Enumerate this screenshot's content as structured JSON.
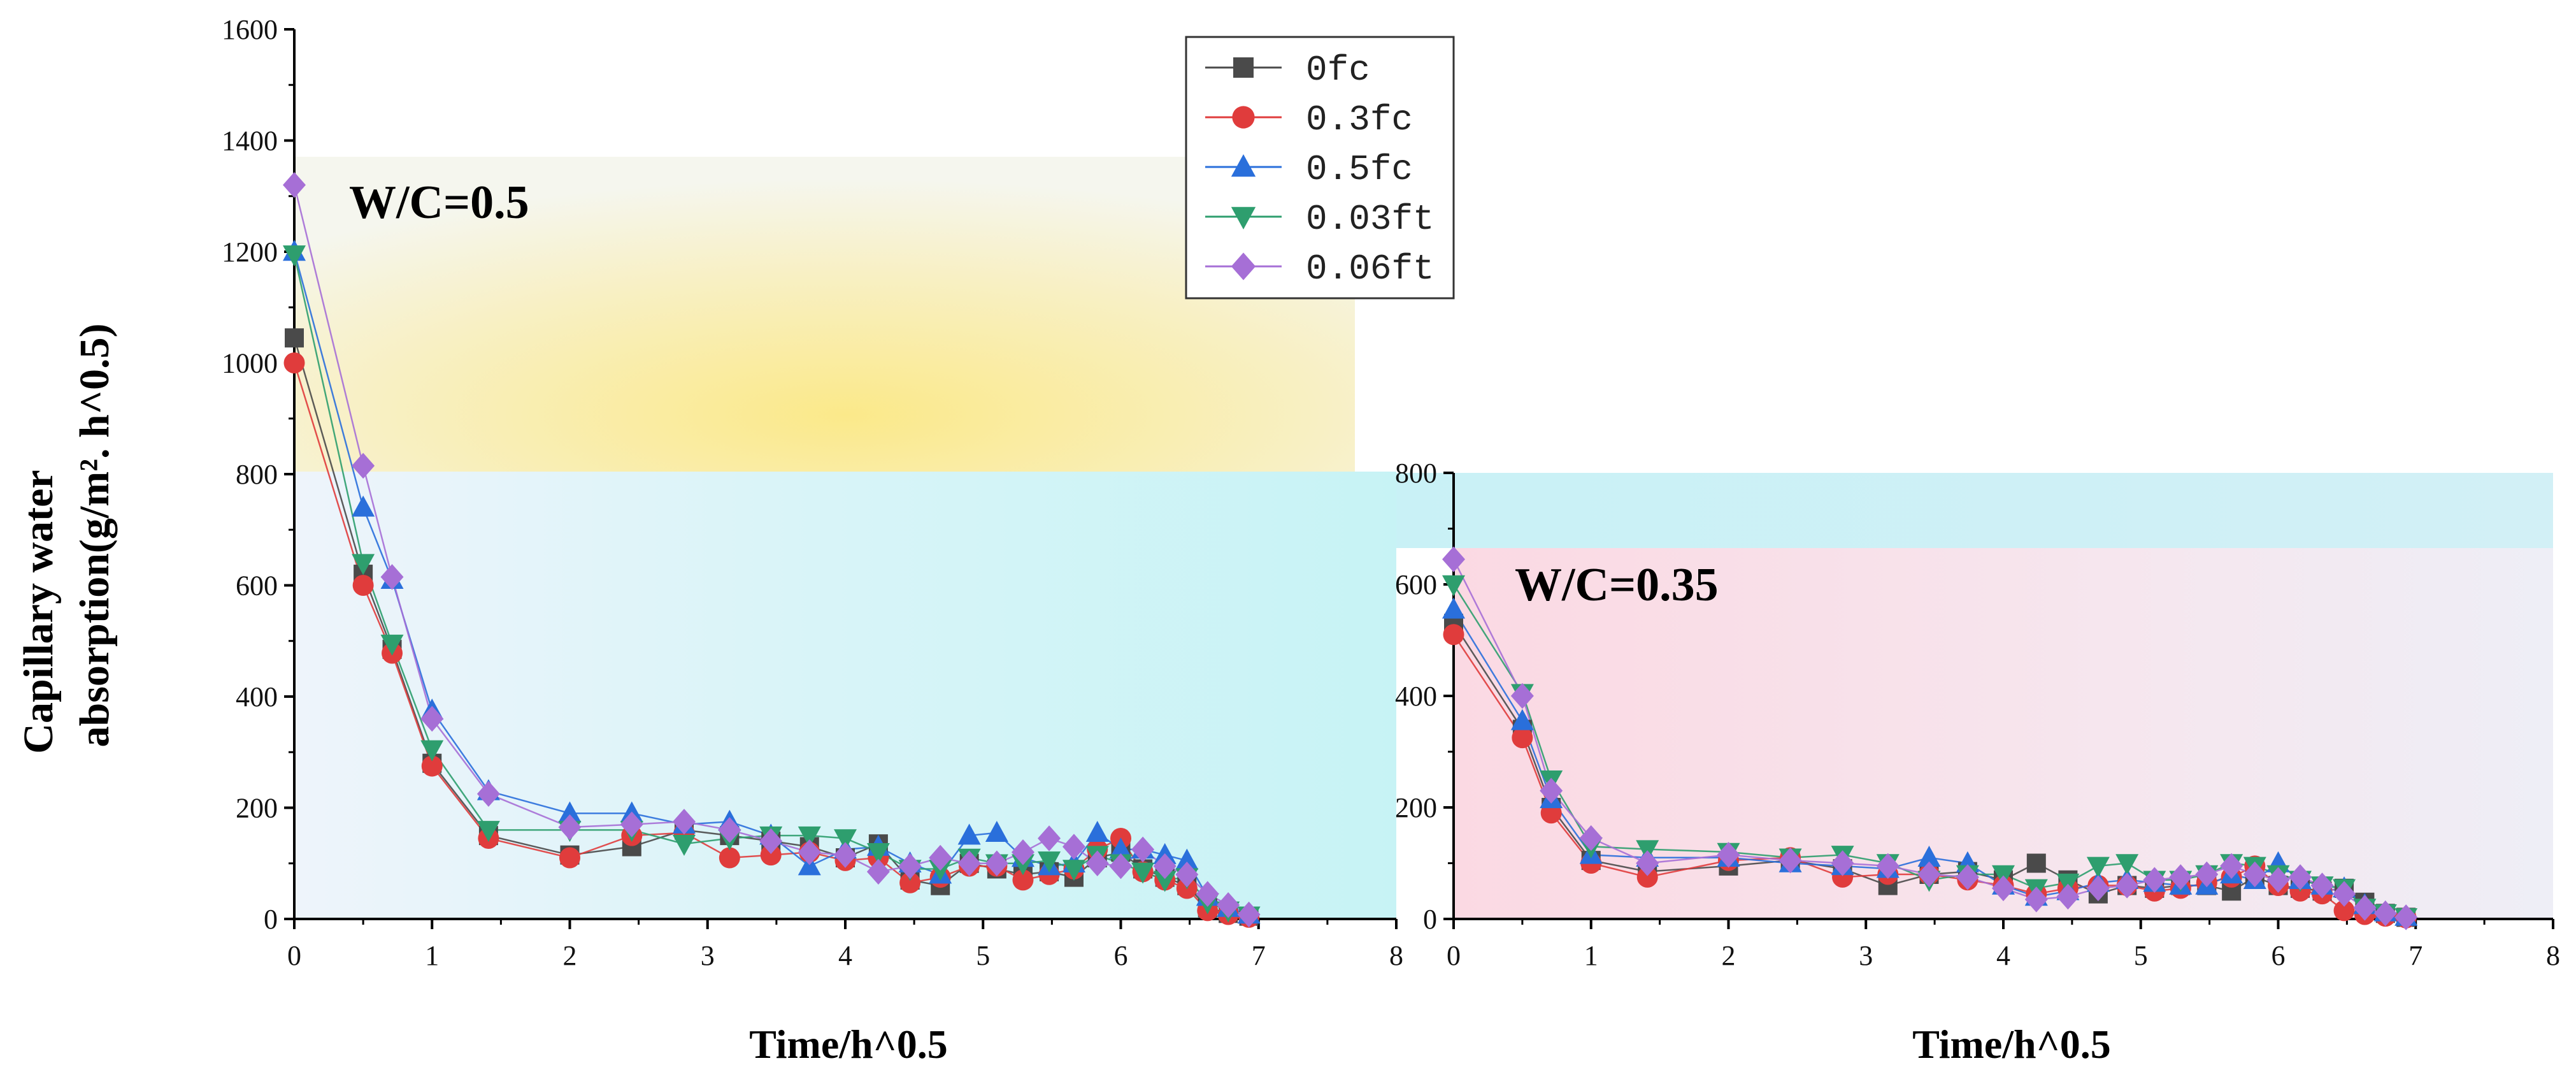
{
  "chart_data": [
    {
      "type": "line",
      "panel": "left",
      "title": "",
      "annotation": "W/C=0.5",
      "xlabel": "Time/h^0.5",
      "ylabel_lines": [
        "Capillary water",
        "absorption(g/m². h^0.5)"
      ],
      "xlim": [
        0,
        8
      ],
      "ylim": [
        0,
        1600
      ],
      "xticks": [
        0,
        1,
        2,
        3,
        4,
        5,
        6,
        7,
        8
      ],
      "yticks": [
        0,
        200,
        400,
        600,
        800,
        1000,
        1200,
        1400,
        1600
      ],
      "legend_position": "top-right",
      "series": [
        {
          "name": "0fc",
          "marker": "square",
          "color": "#4a4a4a",
          "x": [
            0,
            0.5,
            0.71,
            1.0,
            1.41,
            2.0,
            2.45,
            2.83,
            3.16,
            3.46,
            3.74,
            4.0,
            4.24,
            4.47,
            4.69,
            4.9,
            5.1,
            5.29,
            5.48,
            5.66,
            5.83,
            6.0,
            6.16,
            6.32,
            6.48,
            6.63,
            6.78,
            6.93
          ],
          "y": [
            1045,
            620,
            485,
            280,
            150,
            115,
            130,
            160,
            150,
            140,
            130,
            110,
            135,
            70,
            60,
            100,
            90,
            80,
            85,
            75,
            110,
            120,
            90,
            75,
            60,
            20,
            10,
            5
          ]
        },
        {
          "name": "0.3fc",
          "marker": "circle",
          "color": "#e03c3c",
          "x": [
            0,
            0.5,
            0.71,
            1.0,
            1.41,
            2.0,
            2.45,
            2.83,
            3.16,
            3.46,
            3.74,
            4.0,
            4.24,
            4.47,
            4.69,
            4.9,
            5.1,
            5.29,
            5.48,
            5.66,
            5.83,
            6.0,
            6.16,
            6.32,
            6.48,
            6.63,
            6.78,
            6.93
          ],
          "y": [
            1000,
            600,
            478,
            275,
            145,
            110,
            150,
            155,
            110,
            115,
            120,
            105,
            110,
            65,
            75,
            95,
            95,
            70,
            80,
            90,
            125,
            145,
            85,
            70,
            55,
            15,
            8,
            3
          ]
        },
        {
          "name": "0.5fc",
          "marker": "triangle-up",
          "color": "#2a6fdb",
          "x": [
            0,
            0.5,
            0.71,
            1.0,
            1.41,
            2.0,
            2.45,
            2.83,
            3.16,
            3.46,
            3.74,
            4.0,
            4.24,
            4.47,
            4.69,
            4.9,
            5.1,
            5.29,
            5.48,
            5.66,
            5.83,
            6.0,
            6.16,
            6.32,
            6.48,
            6.63,
            6.78,
            6.93
          ],
          "y": [
            1200,
            740,
            610,
            375,
            230,
            190,
            190,
            170,
            175,
            150,
            95,
            125,
            130,
            100,
            80,
            150,
            155,
            110,
            95,
            100,
            155,
            125,
            125,
            115,
            105,
            40,
            20,
            8
          ]
        },
        {
          "name": "0.03ft",
          "marker": "triangle-down",
          "color": "#2e9e6e",
          "x": [
            0,
            0.5,
            0.71,
            1.0,
            1.41,
            2.0,
            2.45,
            2.83,
            3.16,
            3.46,
            3.74,
            4.0,
            4.24,
            4.47,
            4.69,
            4.9,
            5.1,
            5.29,
            5.48,
            5.66,
            5.83,
            6.0,
            6.16,
            6.32,
            6.48,
            6.63,
            6.78,
            6.93
          ],
          "y": [
            1195,
            640,
            495,
            305,
            160,
            160,
            160,
            135,
            145,
            150,
            150,
            145,
            120,
            90,
            90,
            110,
            100,
            100,
            105,
            90,
            115,
            100,
            85,
            70,
            75,
            30,
            15,
            6
          ]
        },
        {
          "name": "0.06ft",
          "marker": "diamond",
          "color": "#a66fd6",
          "x": [
            0,
            0.5,
            0.71,
            1.0,
            1.41,
            2.0,
            2.45,
            2.83,
            3.16,
            3.46,
            3.74,
            4.0,
            4.24,
            4.47,
            4.69,
            4.9,
            5.1,
            5.29,
            5.48,
            5.66,
            5.83,
            6.0,
            6.16,
            6.32,
            6.48,
            6.63,
            6.78,
            6.93
          ],
          "y": [
            1320,
            815,
            615,
            360,
            225,
            165,
            170,
            175,
            160,
            140,
            120,
            115,
            85,
            95,
            110,
            100,
            100,
            120,
            145,
            130,
            100,
            95,
            125,
            95,
            80,
            45,
            25,
            8
          ]
        }
      ]
    },
    {
      "type": "line",
      "panel": "right",
      "title": "",
      "annotation": "W/C=0.35",
      "xlabel": "Time/h^0.5",
      "xlim": [
        0,
        8
      ],
      "ylim": [
        0,
        800
      ],
      "xticks": [
        0,
        1,
        2,
        3,
        4,
        5,
        6,
        7,
        8
      ],
      "yticks": [
        0,
        200,
        400,
        600,
        800
      ],
      "series": [
        {
          "name": "0fc",
          "marker": "square",
          "color": "#4a4a4a",
          "x": [
            0,
            0.5,
            0.71,
            1.0,
            1.41,
            2.0,
            2.45,
            2.83,
            3.16,
            3.46,
            3.74,
            4.0,
            4.24,
            4.47,
            4.69,
            4.9,
            5.1,
            5.29,
            5.48,
            5.66,
            5.83,
            6.0,
            6.16,
            6.32,
            6.48,
            6.63,
            6.78,
            6.93
          ],
          "y": [
            530,
            340,
            200,
            105,
            85,
            95,
            105,
            90,
            60,
            80,
            85,
            70,
            100,
            70,
            45,
            60,
            55,
            60,
            60,
            50,
            75,
            60,
            55,
            50,
            55,
            30,
            10,
            3
          ]
        },
        {
          "name": "0.3fc",
          "marker": "circle",
          "color": "#e03c3c",
          "x": [
            0,
            0.5,
            0.71,
            1.0,
            1.41,
            2.0,
            2.45,
            2.83,
            3.16,
            3.46,
            3.74,
            4.0,
            4.24,
            4.47,
            4.69,
            4.9,
            5.1,
            5.29,
            5.48,
            5.66,
            5.83,
            6.0,
            6.16,
            6.32,
            6.48,
            6.63,
            6.78,
            6.93
          ],
          "y": [
            510,
            325,
            190,
            100,
            75,
            105,
            110,
            75,
            80,
            80,
            70,
            60,
            45,
            55,
            60,
            60,
            50,
            55,
            65,
            75,
            95,
            60,
            50,
            45,
            15,
            8,
            5,
            2
          ]
        },
        {
          "name": "0.5fc",
          "marker": "triangle-up",
          "color": "#2a6fdb",
          "x": [
            0,
            0.5,
            0.71,
            1.0,
            1.41,
            2.0,
            2.45,
            2.83,
            3.16,
            3.46,
            3.74,
            4.0,
            4.24,
            4.47,
            4.69,
            4.9,
            5.1,
            5.29,
            5.48,
            5.66,
            5.83,
            6.0,
            6.16,
            6.32,
            6.48,
            6.63,
            6.78,
            6.93
          ],
          "y": [
            555,
            355,
            215,
            115,
            110,
            110,
            100,
            95,
            90,
            110,
            100,
            60,
            40,
            50,
            65,
            70,
            65,
            60,
            60,
            80,
            70,
            100,
            70,
            60,
            55,
            25,
            12,
            4
          ]
        },
        {
          "name": "0.03ft",
          "marker": "triangle-down",
          "color": "#2e9e6e",
          "x": [
            0,
            0.5,
            0.71,
            1.0,
            1.41,
            2.0,
            2.45,
            2.83,
            3.16,
            3.46,
            3.74,
            4.0,
            4.24,
            4.47,
            4.69,
            4.9,
            5.1,
            5.29,
            5.48,
            5.66,
            5.83,
            6.0,
            6.16,
            6.32,
            6.48,
            6.63,
            6.78,
            6.93
          ],
          "y": [
            600,
            405,
            250,
            130,
            125,
            120,
            110,
            115,
            100,
            70,
            80,
            80,
            55,
            65,
            95,
            100,
            70,
            70,
            80,
            100,
            95,
            80,
            70,
            60,
            55,
            20,
            10,
            3
          ]
        },
        {
          "name": "0.06ft",
          "marker": "diamond",
          "color": "#a66fd6",
          "x": [
            0,
            0.5,
            0.71,
            1.0,
            1.41,
            2.0,
            2.45,
            2.83,
            3.16,
            3.46,
            3.74,
            4.0,
            4.24,
            4.47,
            4.69,
            4.9,
            5.1,
            5.29,
            5.48,
            5.66,
            5.83,
            6.0,
            6.16,
            6.32,
            6.48,
            6.63,
            6.78,
            6.93
          ],
          "y": [
            645,
            400,
            230,
            145,
            100,
            115,
            105,
            100,
            95,
            80,
            75,
            55,
            35,
            40,
            55,
            60,
            70,
            75,
            80,
            95,
            80,
            70,
            75,
            60,
            45,
            20,
            10,
            3
          ]
        }
      ]
    }
  ]
}
